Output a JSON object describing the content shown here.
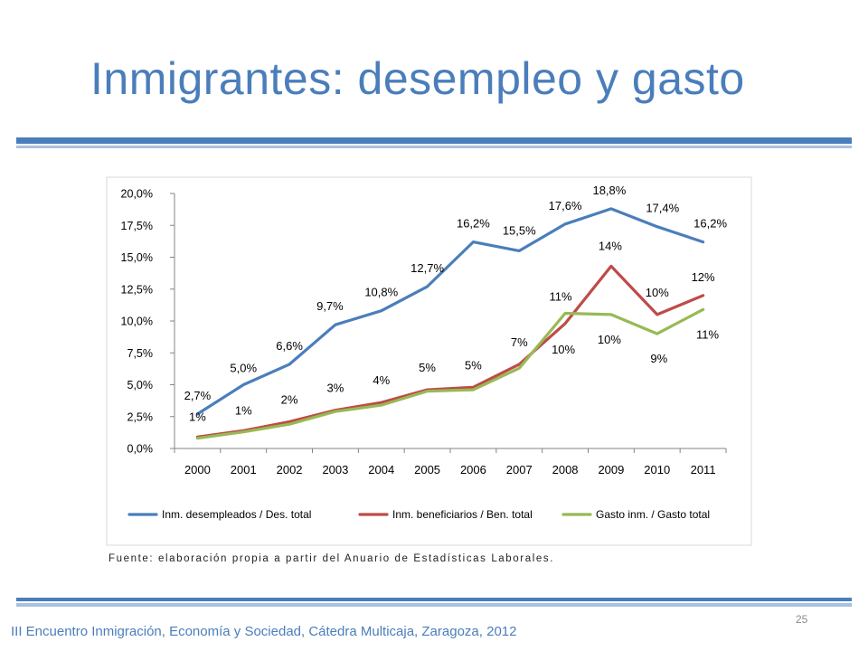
{
  "slide": {
    "title": "Inmigrantes: desempleo y gasto",
    "source": "Fuente: elaboración propia a partir del Anuario de Estadísticas Laborales.",
    "footer": "III Encuentro Inmigración, Economía y Sociedad, Cátedra Multicaja, Zaragoza, 2012",
    "page_number": "25"
  },
  "colors": {
    "title": "#4a7ebb",
    "series_1": "#4a7ebb",
    "series_2": "#be4b48",
    "series_3": "#98b954"
  },
  "chart_data": {
    "type": "line",
    "categories": [
      "2000",
      "2001",
      "2002",
      "2003",
      "2004",
      "2005",
      "2006",
      "2007",
      "2008",
      "2009",
      "2010",
      "2011"
    ],
    "ylim": [
      0,
      20
    ],
    "yticks": [
      "0,0%",
      "2,5%",
      "5,0%",
      "7,5%",
      "10,0%",
      "12,5%",
      "15,0%",
      "17,5%",
      "20,0%"
    ],
    "legend_position": "bottom",
    "grid": false,
    "series": [
      {
        "name": "Inm. desempleados / Des. total",
        "color": "#4a7ebb",
        "values": [
          2.7,
          5.0,
          6.6,
          9.7,
          10.8,
          12.7,
          16.2,
          15.5,
          17.6,
          18.8,
          17.4,
          16.2
        ],
        "labels": [
          "2,7%",
          "5,0%",
          "6,6%",
          "9,7%",
          "10,8%",
          "12,7%",
          "16,2%",
          "15,5%",
          "17,6%",
          "18,8%",
          "17,4%",
          "16,2%"
        ]
      },
      {
        "name": "Inm. beneficiarios / Ben. total",
        "color": "#be4b48",
        "values": [
          0.9,
          1.4,
          2.1,
          3.0,
          3.6,
          4.6,
          4.8,
          6.6,
          9.8,
          14.3,
          10.5,
          12.0
        ],
        "labels": [
          "1%",
          "1%",
          "2%",
          "3%",
          "4%",
          "5%",
          "5%",
          "7%",
          "10%",
          "14%",
          "10%",
          "12%"
        ]
      },
      {
        "name": "Gasto inm. / Gasto total",
        "color": "#98b954",
        "values": [
          0.8,
          1.3,
          1.9,
          2.9,
          3.4,
          4.5,
          4.6,
          6.3,
          10.6,
          10.5,
          9.0,
          10.9
        ],
        "labels": [
          "",
          "",
          "",
          "",
          "",
          "",
          "",
          "",
          "11%",
          "10%",
          "9%",
          "11%"
        ]
      }
    ]
  }
}
